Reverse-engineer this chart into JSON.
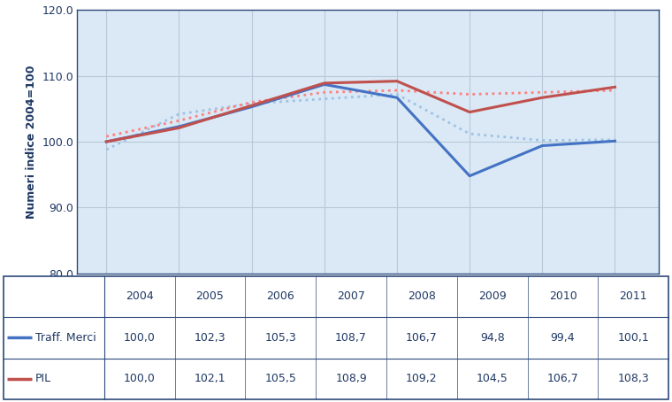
{
  "years": [
    2004,
    2005,
    2006,
    2007,
    2008,
    2009,
    2010,
    2011
  ],
  "traff_merci": [
    100.0,
    102.3,
    105.3,
    108.7,
    106.7,
    94.8,
    99.4,
    100.1
  ],
  "pil": [
    100.0,
    102.1,
    105.5,
    108.9,
    109.2,
    104.5,
    106.7,
    108.3
  ],
  "traff_merci_dotted": [
    98.8,
    104.2,
    105.8,
    106.5,
    107.2,
    101.2,
    100.2,
    100.3
  ],
  "pil_dotted": [
    100.8,
    103.2,
    106.0,
    107.5,
    107.8,
    107.2,
    107.5,
    107.8
  ],
  "solid_blue_color": "#4472C4",
  "solid_red_color": "#C0504D",
  "dot_blue_color": "#9DC3E6",
  "dot_red_color": "#FF8080",
  "bg_plot": "#DAE9F5",
  "bg_outer": "#FFFFFF",
  "ylim": [
    80.0,
    120.0
  ],
  "yticks": [
    80.0,
    90.0,
    100.0,
    110.0,
    120.0
  ],
  "ylabel": "Numeri indice 2004=100",
  "legend_traff": "Traff. Merci",
  "legend_pil": "PIL",
  "table_traff": [
    100.0,
    102.3,
    105.3,
    108.7,
    106.7,
    94.8,
    99.4,
    100.1
  ],
  "table_pil": [
    100.0,
    102.1,
    105.5,
    108.9,
    109.2,
    104.5,
    106.7,
    108.3
  ],
  "grid_color": "#B8C8D8",
  "border_color": "#2E4A7A",
  "ylabel_color": "#1F3864",
  "tick_color": "#1F3864"
}
